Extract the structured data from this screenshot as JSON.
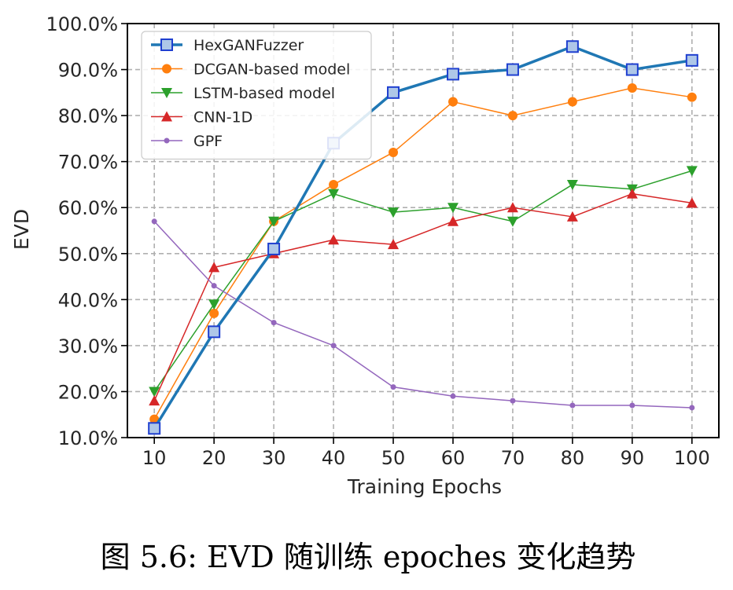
{
  "chart_data": {
    "type": "line",
    "title": "",
    "xlabel": "Training Epochs",
    "ylabel": "EVD",
    "x": [
      10,
      20,
      30,
      40,
      50,
      60,
      70,
      80,
      90,
      100
    ],
    "x_ticks": [
      "10",
      "20",
      "30",
      "40",
      "50",
      "60",
      "70",
      "80",
      "90",
      "100"
    ],
    "y_ticks": [
      "10.0%",
      "20.0%",
      "30.0%",
      "40.0%",
      "50.0%",
      "60.0%",
      "70.0%",
      "80.0%",
      "90.0%",
      "100.0%"
    ],
    "ylim": [
      10,
      100
    ],
    "grid": true,
    "legend_position": "top-left",
    "series": [
      {
        "name": "HexGANFuzzer",
        "color": "#1f77b4",
        "marker": "square",
        "values": [
          12,
          33,
          51,
          74,
          85,
          89,
          90,
          95,
          90,
          92
        ]
      },
      {
        "name": "DCGAN-based model",
        "color": "#ff7f0e",
        "marker": "circle",
        "values": [
          14,
          37,
          57,
          65,
          72,
          83,
          80,
          83,
          86,
          84
        ]
      },
      {
        "name": "LSTM-based model",
        "color": "#2ca02c",
        "marker": "triangle-down",
        "values": [
          20,
          39,
          57,
          63,
          59,
          60,
          57,
          65,
          64,
          68
        ]
      },
      {
        "name": "CNN-1D",
        "color": "#d62728",
        "marker": "triangle-up",
        "values": [
          18,
          47,
          50,
          53,
          52,
          57,
          60,
          58,
          63,
          61
        ]
      },
      {
        "name": "GPF",
        "color": "#9467bd",
        "marker": "dot",
        "values": [
          57,
          43,
          35,
          30,
          21,
          19,
          18,
          17,
          17,
          16.5
        ]
      }
    ]
  },
  "caption": "图 5.6: EVD 随训练 epoches 变化趋势"
}
